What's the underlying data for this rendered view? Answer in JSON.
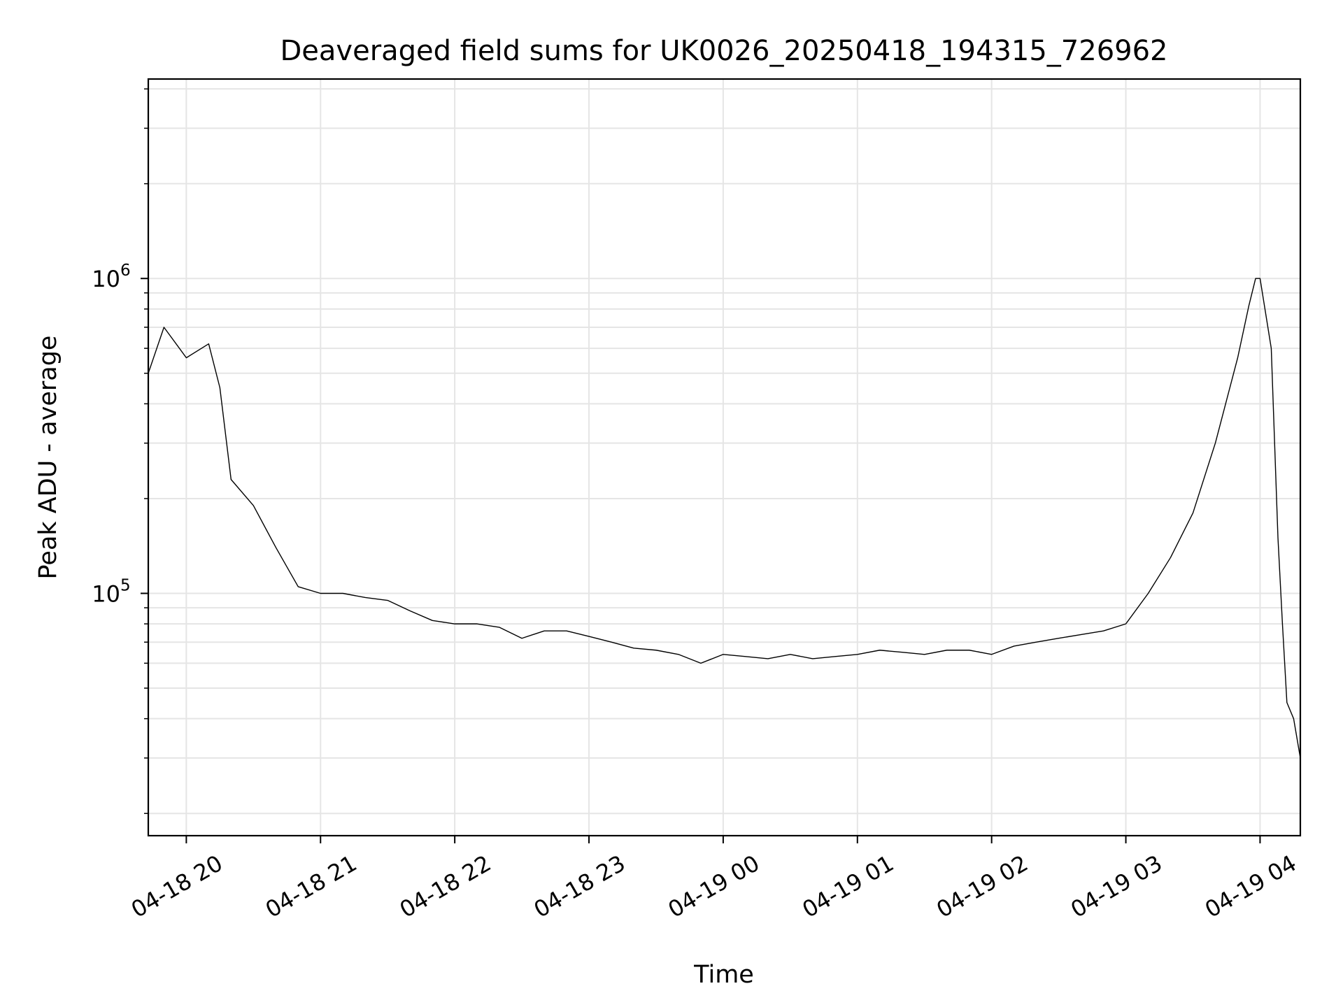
{
  "chart_data": {
    "type": "line",
    "title": "Deaveraged field sums for UK0026_20250418_194315_726962",
    "xlabel": "Time",
    "ylabel": "Peak ADU - average",
    "y_scale": "log",
    "x_range": [
      "04-18 19:43",
      "04-19 04:18"
    ],
    "ylim": [
      17000,
      4300000
    ],
    "grid": true,
    "x_tick_labels": [
      "04-18 20",
      "04-18 21",
      "04-18 22",
      "04-18 23",
      "04-19 00",
      "04-19 01",
      "04-19 02",
      "04-19 03",
      "04-19 04"
    ],
    "y_tick_labels": [
      {
        "base": "10",
        "exp": "6",
        "value": 1000000
      },
      {
        "base": "10",
        "exp": "5",
        "value": 100000
      }
    ],
    "series": [
      {
        "color": "#000000",
        "points": [
          [
            "04-18 19:43",
            500000
          ],
          [
            "04-18 19:50",
            700000
          ],
          [
            "04-18 20:00",
            560000
          ],
          [
            "04-18 20:10",
            620000
          ],
          [
            "04-18 20:15",
            450000
          ],
          [
            "04-18 20:20",
            230000
          ],
          [
            "04-18 20:30",
            190000
          ],
          [
            "04-18 20:40",
            140000
          ],
          [
            "04-18 20:50",
            105000
          ],
          [
            "04-18 21:00",
            100000
          ],
          [
            "04-18 21:10",
            100000
          ],
          [
            "04-18 21:20",
            97000
          ],
          [
            "04-18 21:30",
            95000
          ],
          [
            "04-18 21:40",
            88000
          ],
          [
            "04-18 21:50",
            82000
          ],
          [
            "04-18 22:00",
            80000
          ],
          [
            "04-18 22:10",
            80000
          ],
          [
            "04-18 22:20",
            78000
          ],
          [
            "04-18 22:30",
            72000
          ],
          [
            "04-18 22:40",
            76000
          ],
          [
            "04-18 22:50",
            76000
          ],
          [
            "04-18 23:00",
            73000
          ],
          [
            "04-18 23:10",
            70000
          ],
          [
            "04-18 23:20",
            67000
          ],
          [
            "04-18 23:30",
            66000
          ],
          [
            "04-18 23:40",
            64000
          ],
          [
            "04-18 23:50",
            60000
          ],
          [
            "04-19 00:00",
            64000
          ],
          [
            "04-19 00:10",
            63000
          ],
          [
            "04-19 00:20",
            62000
          ],
          [
            "04-19 00:30",
            64000
          ],
          [
            "04-19 00:40",
            62000
          ],
          [
            "04-19 00:50",
            63000
          ],
          [
            "04-19 01:00",
            64000
          ],
          [
            "04-19 01:10",
            66000
          ],
          [
            "04-19 01:20",
            65000
          ],
          [
            "04-19 01:30",
            64000
          ],
          [
            "04-19 01:40",
            66000
          ],
          [
            "04-19 01:50",
            66000
          ],
          [
            "04-19 02:00",
            64000
          ],
          [
            "04-19 02:10",
            68000
          ],
          [
            "04-19 02:20",
            70000
          ],
          [
            "04-19 02:30",
            72000
          ],
          [
            "04-19 02:40",
            74000
          ],
          [
            "04-19 02:50",
            76000
          ],
          [
            "04-19 03:00",
            80000
          ],
          [
            "04-19 03:10",
            100000
          ],
          [
            "04-19 03:20",
            130000
          ],
          [
            "04-19 03:30",
            180000
          ],
          [
            "04-19 03:40",
            300000
          ],
          [
            "04-19 03:50",
            560000
          ],
          [
            "04-19 03:55",
            820000
          ],
          [
            "04-19 03:58",
            1000000
          ],
          [
            "04-19 04:00",
            1000000
          ],
          [
            "04-19 04:05",
            600000
          ],
          [
            "04-19 04:08",
            150000
          ],
          [
            "04-19 04:10",
            80000
          ],
          [
            "04-19 04:12",
            45000
          ],
          [
            "04-19 04:15",
            40000
          ],
          [
            "04-19 04:18",
            30000
          ]
        ]
      }
    ]
  }
}
